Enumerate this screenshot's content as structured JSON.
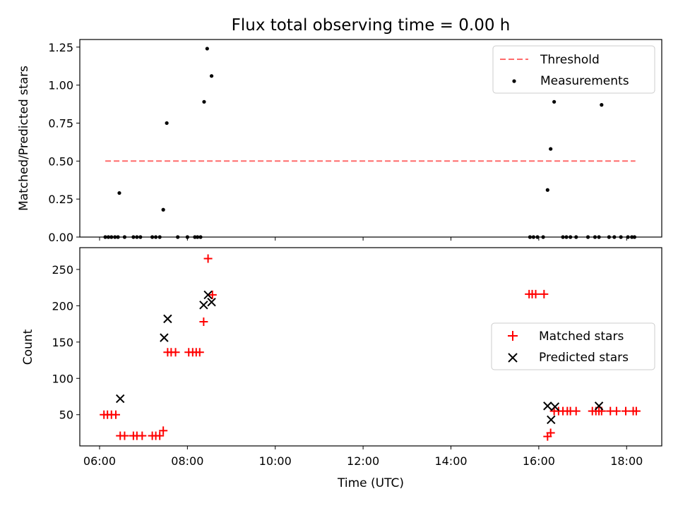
{
  "chart_data": [
    {
      "type": "scatter",
      "title": "Flux total observing time = 0.00 h",
      "xlabel": "",
      "ylabel": "Matched/Predicted stars",
      "xlim": [
        5.55,
        18.8
      ],
      "ylim": [
        0.0,
        1.3
      ],
      "x_ticks": [
        "06:00",
        "08:00",
        "10:00",
        "12:00",
        "14:00",
        "16:00",
        "18:00"
      ],
      "y_ticks": [
        "0.00",
        "0.25",
        "0.50",
        "0.75",
        "1.00",
        "1.25"
      ],
      "grid": false,
      "legend": "top-right",
      "series": [
        {
          "name": "Threshold",
          "kind": "line",
          "style": "dashed",
          "color": "#ff6b6b",
          "x": [
            6.13,
            18.2
          ],
          "y": [
            0.5,
            0.5
          ]
        },
        {
          "name": "Measurements",
          "kind": "scatter",
          "marker": "dot",
          "color": "#000000",
          "x": [
            6.13,
            6.2,
            6.27,
            6.35,
            6.42,
            6.45,
            6.57,
            6.77,
            6.85,
            6.93,
            7.2,
            7.28,
            7.37,
            7.45,
            7.53,
            7.78,
            8.0,
            8.17,
            8.23,
            8.3,
            8.38,
            8.45,
            8.55,
            15.8,
            15.88,
            15.97,
            16.1,
            16.2,
            16.27,
            16.35,
            16.55,
            16.63,
            16.72,
            16.85,
            17.12,
            17.28,
            17.37,
            17.43,
            17.6,
            17.72,
            17.87,
            18.03,
            18.12,
            18.18
          ],
          "y": [
            0,
            0,
            0,
            0,
            0,
            0.29,
            0,
            0,
            0,
            0,
            0,
            0,
            0,
            0.18,
            0.75,
            0,
            0,
            0,
            0,
            0,
            0.89,
            1.24,
            1.06,
            0,
            0,
            0,
            0,
            0.31,
            0.58,
            0.89,
            0,
            0,
            0,
            0,
            0,
            0,
            0,
            0.87,
            0,
            0,
            0,
            0,
            0,
            0
          ]
        }
      ]
    },
    {
      "type": "scatter",
      "title": "",
      "xlabel": "Time (UTC)",
      "ylabel": "Count",
      "xlim": [
        5.55,
        18.8
      ],
      "ylim": [
        7,
        280
      ],
      "x_ticks": [
        "06:00",
        "08:00",
        "10:00",
        "12:00",
        "14:00",
        "16:00",
        "18:00"
      ],
      "y_ticks": [
        "50",
        "100",
        "150",
        "200",
        "250"
      ],
      "grid": false,
      "legend": "center-right",
      "series": [
        {
          "name": "Matched stars",
          "marker": "plus",
          "color": "#ff0000",
          "x": [
            6.1,
            6.18,
            6.27,
            6.37,
            6.47,
            6.57,
            6.77,
            6.85,
            6.97,
            7.2,
            7.28,
            7.37,
            7.45,
            7.55,
            7.63,
            7.73,
            8.03,
            8.12,
            8.2,
            8.28,
            8.37,
            8.47,
            8.57,
            15.78,
            15.85,
            15.93,
            16.12,
            16.2,
            16.27,
            16.35,
            16.45,
            16.55,
            16.65,
            16.72,
            16.85,
            17.22,
            17.3,
            17.37,
            17.43,
            17.63,
            17.77,
            17.98,
            18.15,
            18.22
          ],
          "y": [
            50,
            50,
            50,
            50,
            21,
            21,
            21,
            21,
            21,
            21,
            21,
            21,
            28,
            136,
            136,
            136,
            136,
            136,
            136,
            136,
            178,
            265,
            215,
            216,
            216,
            216,
            216,
            20,
            25,
            55,
            55,
            55,
            55,
            55,
            55,
            55,
            55,
            55,
            55,
            55,
            55,
            55,
            55,
            55
          ]
        },
        {
          "name": "Predicted stars",
          "marker": "x",
          "color": "#000000",
          "x": [
            6.47,
            7.47,
            7.55,
            8.37,
            8.47,
            8.55,
            16.2,
            16.28,
            16.37,
            17.37
          ],
          "y": [
            72,
            156,
            182,
            201,
            215,
            205,
            62,
            43,
            61,
            62
          ]
        }
      ]
    }
  ]
}
